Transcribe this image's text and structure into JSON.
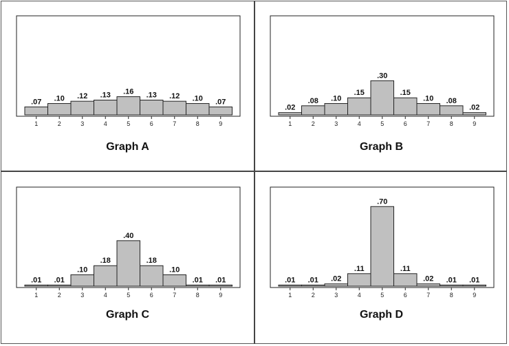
{
  "chart_data": [
    {
      "type": "bar",
      "title": "Graph A",
      "categories": [
        "1",
        "2",
        "3",
        "4",
        "5",
        "6",
        "7",
        "8",
        "9"
      ],
      "values": [
        0.07,
        0.1,
        0.12,
        0.13,
        0.16,
        0.13,
        0.12,
        0.1,
        0.07
      ],
      "value_labels": [
        ".07",
        ".10",
        ".12",
        ".13",
        ".16",
        ".13",
        ".12",
        ".10",
        ".07"
      ],
      "ylim": [
        0,
        0.75
      ],
      "grid": false,
      "bar_color": "#c0c0c0"
    },
    {
      "type": "bar",
      "title": "Graph B",
      "categories": [
        "1",
        "2",
        "3",
        "4",
        "5",
        "6",
        "7",
        "8",
        "9"
      ],
      "values": [
        0.02,
        0.08,
        0.1,
        0.15,
        0.3,
        0.15,
        0.1,
        0.08,
        0.02
      ],
      "value_labels": [
        ".02",
        ".08",
        ".10",
        ".15",
        ".30",
        ".15",
        ".10",
        ".08",
        ".02"
      ],
      "ylim": [
        0,
        0.75
      ],
      "grid": false,
      "bar_color": "#c0c0c0"
    },
    {
      "type": "bar",
      "title": "Graph C",
      "categories": [
        "1",
        "2",
        "3",
        "4",
        "5",
        "6",
        "7",
        "8",
        "9"
      ],
      "values": [
        0.01,
        0.01,
        0.1,
        0.18,
        0.4,
        0.18,
        0.1,
        0.01,
        0.01
      ],
      "value_labels": [
        ".01",
        ".01",
        ".10",
        ".18",
        ".40",
        ".18",
        ".10",
        ".01",
        ".01"
      ],
      "ylim": [
        0,
        0.75
      ],
      "grid": false,
      "bar_color": "#c0c0c0"
    },
    {
      "type": "bar",
      "title": "Graph D",
      "categories": [
        "1",
        "2",
        "3",
        "4",
        "5",
        "6",
        "7",
        "8",
        "9"
      ],
      "values": [
        0.01,
        0.01,
        0.02,
        0.11,
        0.7,
        0.11,
        0.02,
        0.01,
        0.01
      ],
      "value_labels": [
        ".01",
        ".01",
        ".02",
        ".11",
        ".70",
        ".11",
        ".02",
        ".01",
        ".01"
      ],
      "ylim": [
        0,
        0.75
      ],
      "grid": false,
      "bar_color": "#c0c0c0"
    }
  ]
}
